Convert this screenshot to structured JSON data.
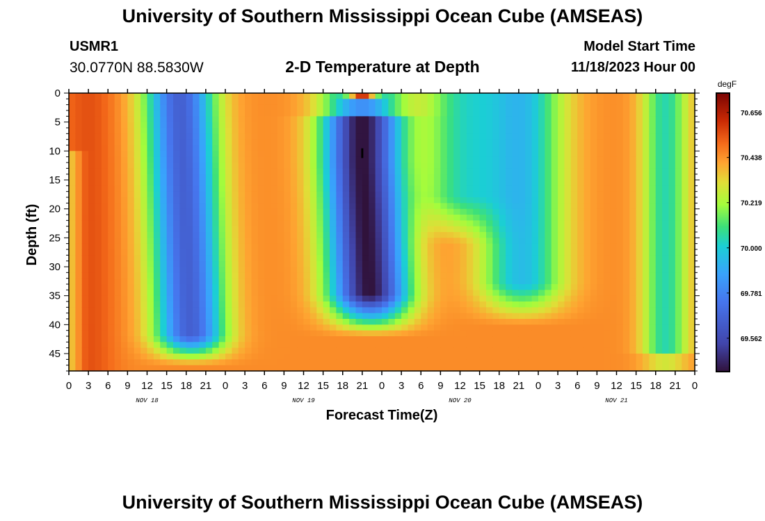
{
  "header": {
    "title": "University of Southern Mississippi Ocean Cube (AMSEAS)",
    "station_id": "USMR1",
    "coords": "30.0770N  88.5830W",
    "subtitle": "2-D Temperature at Depth",
    "model_start_label": "Model Start Time",
    "model_start_value": "11/18/2023 Hour 00"
  },
  "footer": {
    "title": "University of Southern Mississippi Ocean Cube (AMSEAS)"
  },
  "chart_data": {
    "type": "heatmap",
    "title": "2-D Temperature at Depth",
    "xlabel": "Forecast Time(Z)",
    "ylabel": "Depth (ft)",
    "x_range_hours": [
      0,
      96
    ],
    "x_tick_labels": [
      "0",
      "3",
      "6",
      "9",
      "12",
      "15",
      "18",
      "21",
      "0",
      "3",
      "6",
      "9",
      "12",
      "15",
      "18",
      "21",
      "0",
      "3",
      "6",
      "9",
      "12",
      "15",
      "18",
      "21",
      "0",
      "3",
      "6",
      "9",
      "12",
      "15",
      "18",
      "21",
      "0"
    ],
    "date_labels": [
      {
        "label": "NOV 18",
        "hour": 12
      },
      {
        "label": "NOV 19",
        "hour": 36
      },
      {
        "label": "NOV 20",
        "hour": 60
      },
      {
        "label": "NOV 21",
        "hour": 84
      }
    ],
    "ylim": [
      48,
      0
    ],
    "y_ticks": [
      0,
      5,
      10,
      15,
      20,
      25,
      30,
      35,
      40,
      45
    ],
    "colorbar": {
      "units": "degF",
      "min": 69.4,
      "max": 70.75,
      "tick_values": [
        70.656,
        70.438,
        70.219,
        70.0,
        69.781,
        69.562
      ],
      "tick_labels": [
        "70.656",
        "70.438",
        "70.219",
        "70.000",
        "69.781",
        "69.562"
      ]
    },
    "annotation": {
      "text": "I",
      "hour": 45,
      "depth": 10.5
    },
    "temperature_regions_degF": [
      {
        "desc": "warm surface water",
        "hours": [
          0,
          8
        ],
        "depth": [
          0,
          48
        ],
        "value": 70.55
      },
      {
        "desc": "cool cell",
        "hours": [
          11,
          23
        ],
        "depth": [
          0,
          46
        ],
        "value": 69.7
      },
      {
        "desc": "warm band",
        "hours": [
          25,
          36
        ],
        "depth": [
          0,
          48
        ],
        "value": 70.4
      },
      {
        "desc": "coldest cell",
        "hours": [
          38,
          52
        ],
        "depth": [
          4,
          36
        ],
        "value": 69.45
      },
      {
        "desc": "warm surface patch",
        "hours": [
          43,
          47
        ],
        "depth": [
          0,
          1
        ],
        "value": 70.7
      },
      {
        "desc": "warm bottom water",
        "hours": [
          48,
          64
        ],
        "depth": [
          20,
          48
        ],
        "value": 70.48
      },
      {
        "desc": "mild cell",
        "hours": [
          64,
          75
        ],
        "depth": [
          0,
          35
        ],
        "value": 69.95
      },
      {
        "desc": "warm band",
        "hours": [
          75,
          86
        ],
        "depth": [
          0,
          48
        ],
        "value": 70.3
      },
      {
        "desc": "cool patch",
        "hours": [
          89,
          94
        ],
        "depth": [
          30,
          40
        ],
        "value": 69.75
      }
    ]
  }
}
